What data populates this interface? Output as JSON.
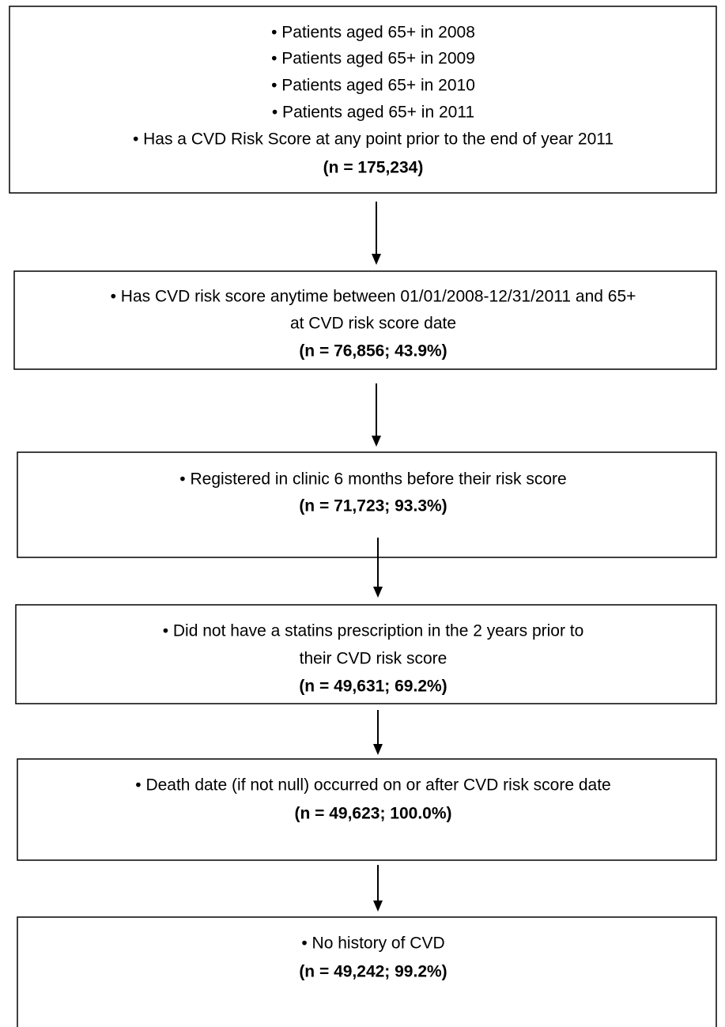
{
  "boxes": [
    {
      "lines": [
        "• Patients aged 65+ in 2008",
        "• Patients aged 65+ in 2009",
        "• Patients aged 65+ in 2010",
        "• Patients aged 65+ in 2011",
        "• Has a CVD Risk Score at any point prior to the end of year 2011"
      ],
      "count": "(n = 175,234)"
    },
    {
      "lines": [
        "• Has CVD risk score anytime between 01/01/2008-12/31/2011 and 65+",
        "at CVD risk score date"
      ],
      "count": "(n = 76,856; 43.9%)"
    },
    {
      "lines": [
        "• Registered in clinic 6 months before their risk score"
      ],
      "count": "(n = 71,723; 93.3%)"
    },
    {
      "lines": [
        "• Did not have a statins prescription in the 2 years prior to",
        "their CVD risk score"
      ],
      "count": "(n = 49,631; 69.2%)"
    },
    {
      "lines": [
        "• Death date (if not null) occurred on or after CVD risk score date"
      ],
      "count": "(n = 49,623; 100.0%)"
    },
    {
      "lines": [
        "• No history of CVD"
      ],
      "count": "(n = 49,242; 99.2%)"
    }
  ]
}
